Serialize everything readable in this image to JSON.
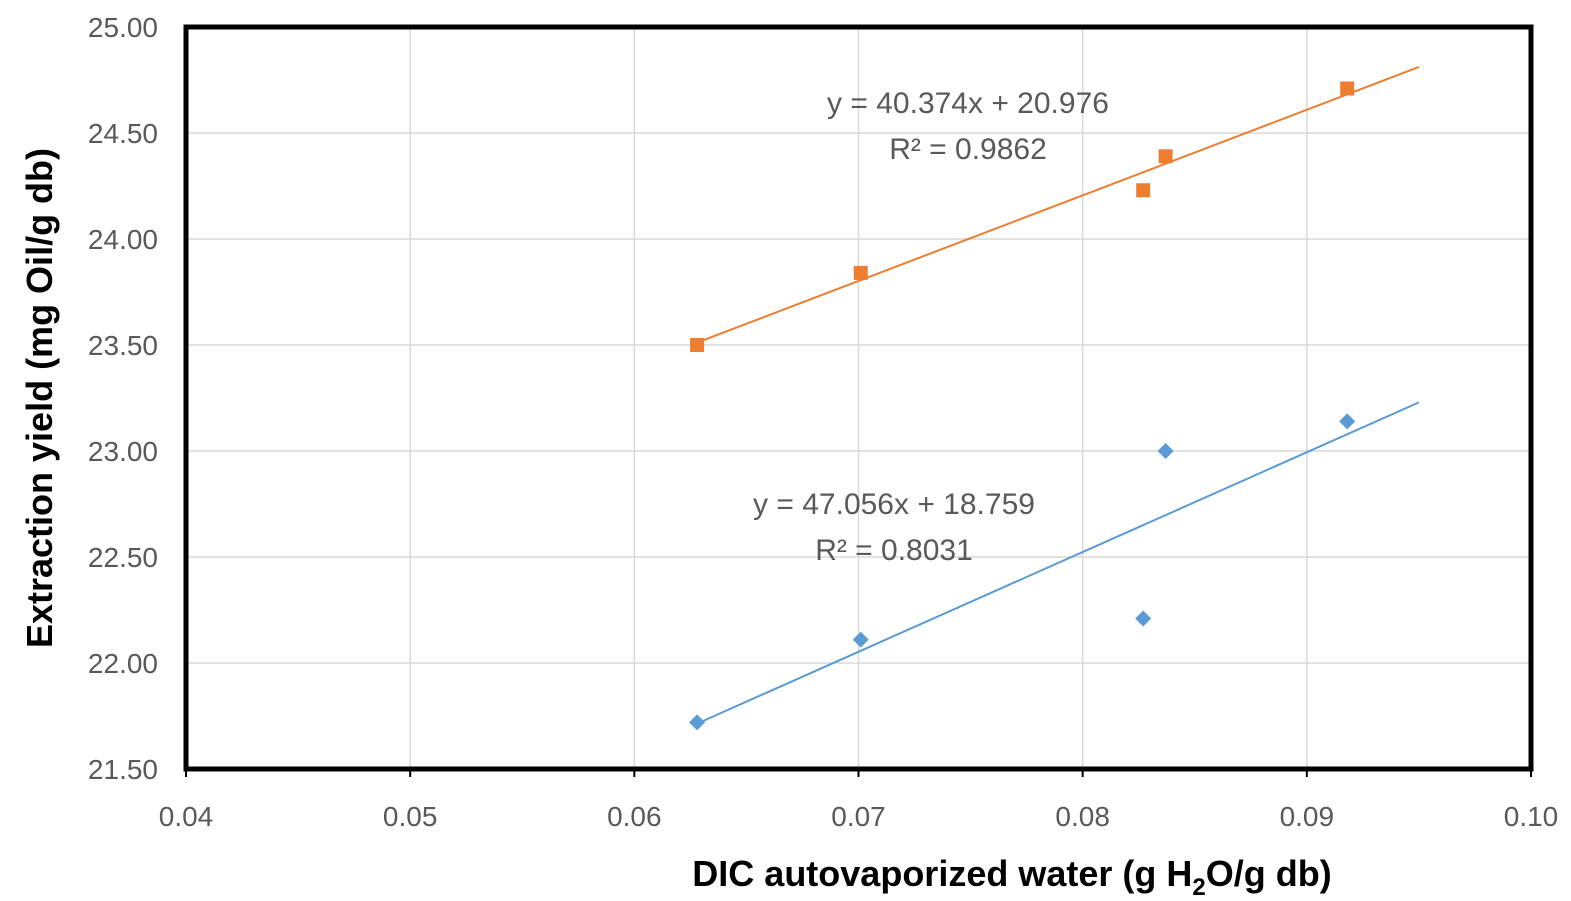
{
  "chart_data": {
    "type": "scatter",
    "title": "",
    "xlabel_parts": [
      "DIC autovaporized water (g H",
      "2",
      "O/g db)"
    ],
    "ylabel": "Extraction yield (mg Oil/g db)",
    "xlim": [
      0.04,
      0.1
    ],
    "ylim": [
      21.5,
      25.0
    ],
    "x_ticks": [
      "0.04",
      "0.05",
      "0.06",
      "0.07",
      "0.08",
      "0.09",
      "0.10"
    ],
    "y_ticks": [
      "21.50",
      "22.00",
      "22.50",
      "23.00",
      "23.50",
      "24.00",
      "24.50",
      "25.00"
    ],
    "grid": true,
    "series": [
      {
        "marker": "square",
        "color": "#ED7D31",
        "x": [
          0.0628,
          0.0701,
          0.0827,
          0.0837,
          0.0918
        ],
        "y": [
          23.5,
          23.84,
          24.23,
          24.39,
          24.71
        ],
        "trendline": {
          "slope": 40.374,
          "intercept": 20.976,
          "x_range": [
            0.0628,
            0.095
          ]
        },
        "equation": "y = 40.374x + 20.976",
        "r2": "R² = 0.9862"
      },
      {
        "marker": "diamond",
        "color": "#5B9BD5",
        "x": [
          0.0628,
          0.0701,
          0.0827,
          0.0837,
          0.0918
        ],
        "y": [
          21.72,
          22.11,
          22.21,
          23.0,
          23.14
        ],
        "trendline": {
          "slope": 47.056,
          "intercept": 18.759,
          "x_range": [
            0.0628,
            0.095
          ]
        },
        "equation": "y = 47.056x + 18.759",
        "r2": "R² = 0.8031"
      }
    ]
  }
}
